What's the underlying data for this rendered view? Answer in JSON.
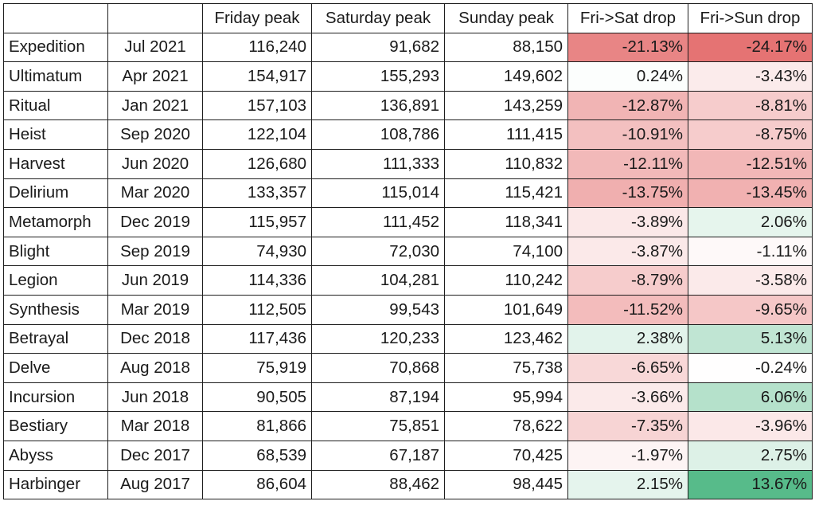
{
  "table": {
    "headers": [
      "",
      "",
      "Friday peak",
      "Saturday peak",
      "Sunday peak",
      "Fri->Sat drop",
      "Fri->Sun drop"
    ],
    "rows": [
      {
        "league": "Expedition",
        "date": "Jul 2021",
        "fri": "116,240",
        "sat": "91,682",
        "sun": "88,150",
        "sat_drop": "-21.13%",
        "sun_drop": "-24.17%"
      },
      {
        "league": "Ultimatum",
        "date": "Apr 2021",
        "fri": "154,917",
        "sat": "155,293",
        "sun": "149,602",
        "sat_drop": "0.24%",
        "sun_drop": "-3.43%"
      },
      {
        "league": "Ritual",
        "date": "Jan 2021",
        "fri": "157,103",
        "sat": "136,891",
        "sun": "143,259",
        "sat_drop": "-12.87%",
        "sun_drop": "-8.81%"
      },
      {
        "league": "Heist",
        "date": "Sep 2020",
        "fri": "122,104",
        "sat": "108,786",
        "sun": "111,415",
        "sat_drop": "-10.91%",
        "sun_drop": "-8.75%"
      },
      {
        "league": "Harvest",
        "date": "Jun 2020",
        "fri": "126,680",
        "sat": "111,333",
        "sun": "110,832",
        "sat_drop": "-12.11%",
        "sun_drop": "-12.51%"
      },
      {
        "league": "Delirium",
        "date": "Mar 2020",
        "fri": "133,357",
        "sat": "115,014",
        "sun": "115,421",
        "sat_drop": "-13.75%",
        "sun_drop": "-13.45%"
      },
      {
        "league": "Metamorph",
        "date": "Dec 2019",
        "fri": "115,957",
        "sat": "111,452",
        "sun": "118,341",
        "sat_drop": "-3.89%",
        "sun_drop": "2.06%"
      },
      {
        "league": "Blight",
        "date": "Sep 2019",
        "fri": "74,930",
        "sat": "72,030",
        "sun": "74,100",
        "sat_drop": "-3.87%",
        "sun_drop": "-1.11%"
      },
      {
        "league": "Legion",
        "date": "Jun 2019",
        "fri": "114,336",
        "sat": "104,281",
        "sun": "110,242",
        "sat_drop": "-8.79%",
        "sun_drop": "-3.58%"
      },
      {
        "league": "Synthesis",
        "date": "Mar 2019",
        "fri": "112,505",
        "sat": "99,543",
        "sun": "101,649",
        "sat_drop": "-11.52%",
        "sun_drop": "-9.65%"
      },
      {
        "league": "Betrayal",
        "date": "Dec 2018",
        "fri": "117,436",
        "sat": "120,233",
        "sun": "123,462",
        "sat_drop": "2.38%",
        "sun_drop": "5.13%"
      },
      {
        "league": "Delve",
        "date": "Aug 2018",
        "fri": "75,919",
        "sat": "70,868",
        "sun": "75,738",
        "sat_drop": "-6.65%",
        "sun_drop": "-0.24%"
      },
      {
        "league": "Incursion",
        "date": "Jun 2018",
        "fri": "90,505",
        "sat": "87,194",
        "sun": "95,994",
        "sat_drop": "-3.66%",
        "sun_drop": "6.06%"
      },
      {
        "league": "Bestiary",
        "date": "Mar 2018",
        "fri": "81,866",
        "sat": "75,851",
        "sun": "78,622",
        "sat_drop": "-7.35%",
        "sun_drop": "-3.96%"
      },
      {
        "league": "Abyss",
        "date": "Dec 2017",
        "fri": "68,539",
        "sat": "67,187",
        "sun": "70,425",
        "sat_drop": "-1.97%",
        "sun_drop": "2.75%"
      },
      {
        "league": "Harbinger",
        "date": "Aug 2017",
        "fri": "86,604",
        "sat": "88,462",
        "sun": "98,445",
        "sat_drop": "2.15%",
        "sun_drop": "13.67%"
      }
    ]
  },
  "colors": {
    "negative_max": "#e57373",
    "positive_max": "#57bb8a",
    "neutral": "#ffffff",
    "grid": "#1e1e1e",
    "text": "#1a1a1a"
  }
}
